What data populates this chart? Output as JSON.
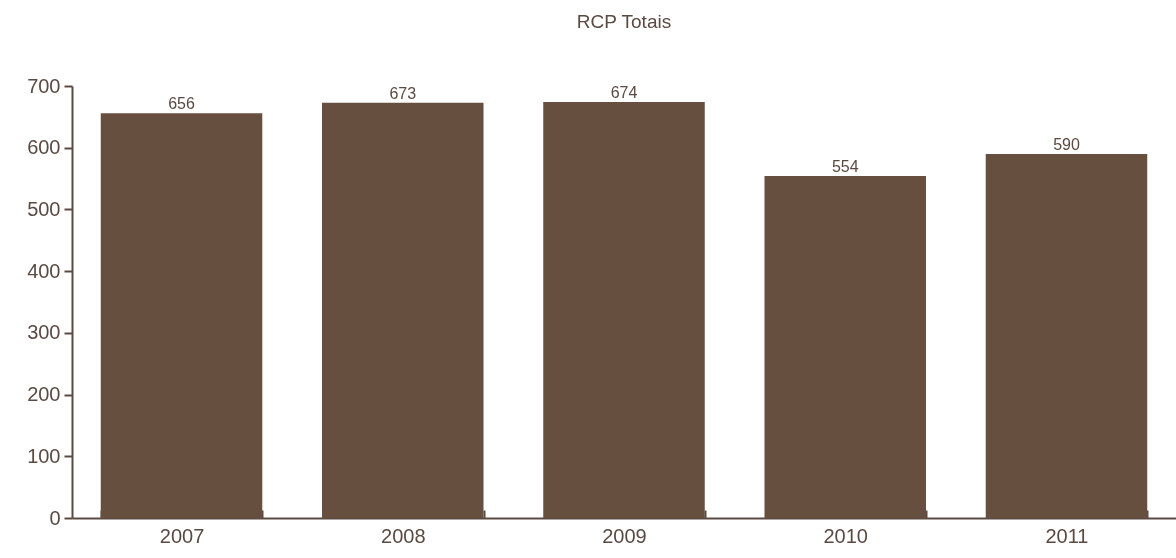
{
  "chart_data": {
    "type": "bar",
    "title": "RCP Totais",
    "categories": [
      "2007",
      "2008",
      "2009",
      "2010",
      "2011"
    ],
    "values": [
      656,
      673,
      674,
      554,
      590
    ],
    "color": "#674f40",
    "ylim": [
      0,
      700
    ],
    "yticks": [
      0,
      100,
      200,
      300,
      400,
      500,
      600,
      700
    ],
    "grid": false,
    "data_labels": true
  }
}
